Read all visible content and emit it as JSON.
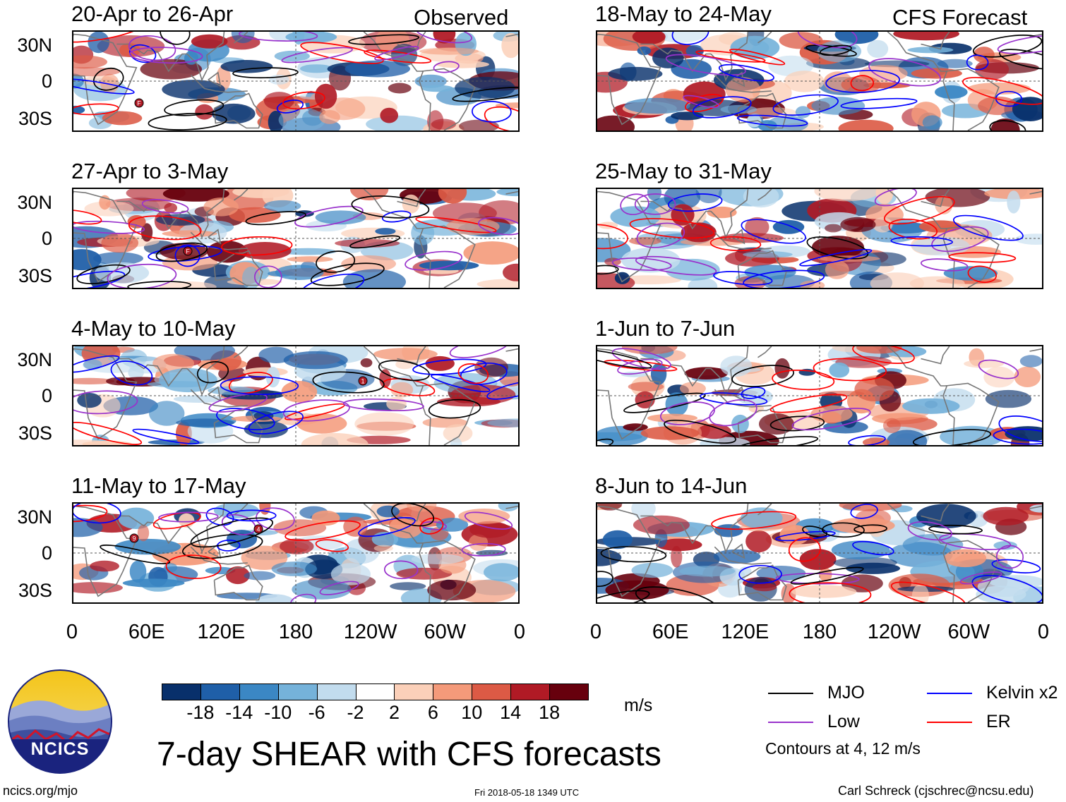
{
  "titles": {
    "observed": "Observed",
    "forecast": "CFS Forecast",
    "main": "7-day SHEAR with CFS forecasts"
  },
  "panels_left": [
    {
      "label": "20-Apr to 26-Apr"
    },
    {
      "label": "27-Apr to 3-May"
    },
    {
      "label": "4-May to 10-May"
    },
    {
      "label": "11-May to 17-May"
    }
  ],
  "panels_right": [
    {
      "label": "18-May to 24-May"
    },
    {
      "label": "25-May to 31-May"
    },
    {
      "label": "1-Jun to 7-Jun"
    },
    {
      "label": "8-Jun to 14-Jun"
    }
  ],
  "axes": {
    "lat_ticks": [
      "30N",
      "0",
      "30S"
    ],
    "lon_ticks": [
      "0",
      "60E",
      "120E",
      "180",
      "120W",
      "60W",
      "0"
    ]
  },
  "storm_markers": [
    "F",
    "F",
    "1",
    "9",
    "4"
  ],
  "colorbar": {
    "unit": "m/s",
    "ticks": [
      "-18",
      "-14",
      "-10",
      "-6",
      "-2",
      "2",
      "6",
      "10",
      "14",
      "18"
    ],
    "colors": [
      "#08306b",
      "#1f5fa8",
      "#3b87c4",
      "#75b2da",
      "#c2dcee",
      "#ffffff",
      "#fbd0b9",
      "#f49a7a",
      "#dc5a45",
      "#b01a25",
      "#67000d"
    ]
  },
  "legend": {
    "items": [
      {
        "label": "MJO",
        "color": "#000000"
      },
      {
        "label": "Kelvin x2",
        "color": "#0000ff"
      },
      {
        "label": "Low",
        "color": "#9932cc"
      },
      {
        "label": "ER",
        "color": "#ff0000"
      }
    ],
    "note": "Contours at 4, 12 m/s"
  },
  "logo": {
    "text": "NCICS"
  },
  "footer": {
    "url": "ncics.org/mjo",
    "timestamp": "Fri 2018-05-18 1349 UTC",
    "credit": "Carl Schreck (cjschrec@ncsu.edu)"
  }
}
